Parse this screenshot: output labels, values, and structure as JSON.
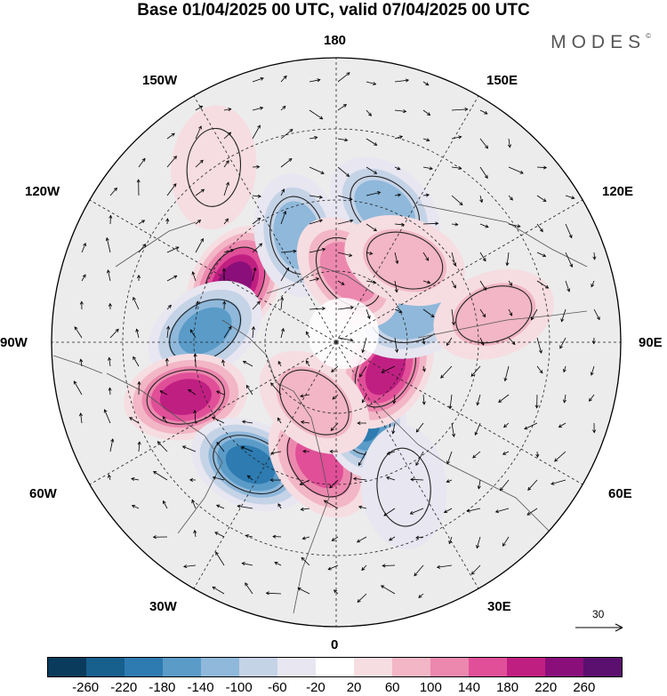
{
  "title": "Base 01/04/2025 00 UTC, valid 07/04/2025 00 UTC",
  "brand": "MODES",
  "brand_mark": "©",
  "longitude_labels": {
    "top": "180",
    "n150w": "150W",
    "n150e": "150E",
    "n120w": "120W",
    "n120e": "120E",
    "n90w": "90W",
    "n90e": "90E",
    "n60w": "60W",
    "n60e": "60E",
    "n30w": "30W",
    "n30e": "30E",
    "bottom": "0"
  },
  "vector_reference": "30",
  "colorbar": {
    "ticks": [
      "-260",
      "-220",
      "-180",
      "-140",
      "-100",
      "-60",
      "-20",
      "20",
      "60",
      "100",
      "140",
      "180",
      "220",
      "260"
    ],
    "colors": [
      "#0b3b5c",
      "#175f8c",
      "#2d7bb0",
      "#5a9bc8",
      "#8fb8da",
      "#c5d3e7",
      "#e7e6f1",
      "#ffffff",
      "#f6dde2",
      "#f2b6c6",
      "#ec88ae",
      "#e04f98",
      "#c01f82",
      "#8b0f7a",
      "#5b0f6f"
    ]
  },
  "anomaly_centers": [
    {
      "lon": -120,
      "colat": 33,
      "value": 240
    },
    {
      "lon": -95,
      "colat": 37,
      "value": -170
    },
    {
      "lon": -70,
      "colat": 45,
      "value": 200
    },
    {
      "lon": -35,
      "colat": 42,
      "value": -210
    },
    {
      "lon": -8,
      "colat": 34,
      "value": 150
    },
    {
      "lon": 20,
      "colat": 22,
      "value": -200
    },
    {
      "lon": 60,
      "colat": 16,
      "value": 190
    },
    {
      "lon": 110,
      "colat": 22,
      "value": -120
    },
    {
      "lon": 160,
      "colat": 40,
      "value": -100
    },
    {
      "lon": -160,
      "colat": 32,
      "value": -120
    },
    {
      "lon": 170,
      "colat": 20,
      "value": 110
    },
    {
      "lon": 140,
      "colat": 30,
      "value": 90
    },
    {
      "lon": 100,
      "colat": 45,
      "value": 60
    },
    {
      "lon": -145,
      "colat": 60,
      "value": 40
    },
    {
      "lon": 25,
      "colat": 45,
      "value": -40
    },
    {
      "lon": -20,
      "colat": 18,
      "value": 80
    }
  ]
}
